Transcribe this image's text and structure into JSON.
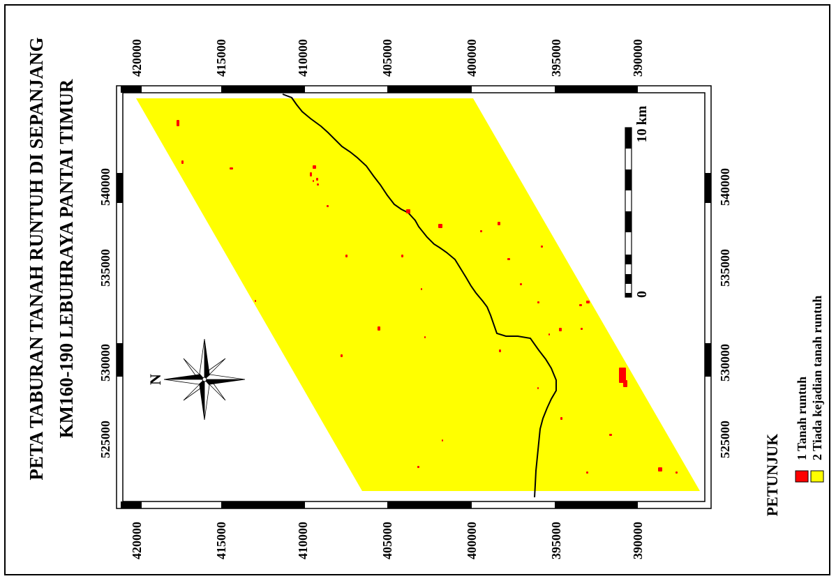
{
  "title": {
    "line1": "PETA TABURAN TANAH RUNTUH DI SEPANJANG",
    "line2": "KM160-190 LEBUHRAYA PANTAI TIMUR"
  },
  "axes": {
    "top_labels": [
      "525000",
      "530000",
      "535000",
      "540000"
    ],
    "bottom_labels": [
      "525000",
      "530000",
      "535000",
      "540000"
    ],
    "left_labels": [
      "420000",
      "415000",
      "410000",
      "405000",
      "400000",
      "395000",
      "390000"
    ],
    "right_labels": [
      "420000",
      "415000",
      "410000",
      "405000",
      "400000",
      "395000",
      "390000"
    ]
  },
  "north_arrow": {
    "label": "N"
  },
  "scale_bar": {
    "start_label": "0",
    "end_label": "10 km"
  },
  "legend": {
    "title": "PETUNJUK",
    "items": [
      {
        "label": "1 Tanah runtuh",
        "color": "#ff0000"
      },
      {
        "label": "2 Tiada kejadian tanah runtuh",
        "color": "#ffff00"
      }
    ]
  },
  "colors": {
    "study_area": "#ffff00",
    "landslide": "#ff0000",
    "highway": "#000000",
    "frame": "#000000",
    "background": "#ffffff"
  }
}
